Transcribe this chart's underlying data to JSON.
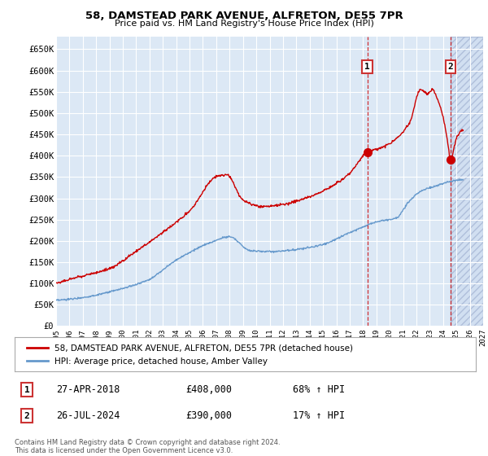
{
  "title": "58, DAMSTEAD PARK AVENUE, ALFRETON, DE55 7PR",
  "subtitle": "Price paid vs. HM Land Registry's House Price Index (HPI)",
  "ylim": [
    0,
    680000
  ],
  "yticks": [
    0,
    50000,
    100000,
    150000,
    200000,
    250000,
    300000,
    350000,
    400000,
    450000,
    500000,
    550000,
    600000,
    650000
  ],
  "ytick_labels": [
    "£0",
    "£50K",
    "£100K",
    "£150K",
    "£200K",
    "£250K",
    "£300K",
    "£350K",
    "£400K",
    "£450K",
    "£500K",
    "£550K",
    "£600K",
    "£650K"
  ],
  "xmin_year": 1995,
  "xmax_year": 2027,
  "xtick_years": [
    1995,
    1996,
    1997,
    1998,
    1999,
    2000,
    2001,
    2002,
    2003,
    2004,
    2005,
    2006,
    2007,
    2008,
    2009,
    2010,
    2011,
    2012,
    2013,
    2014,
    2015,
    2016,
    2017,
    2018,
    2019,
    2020,
    2021,
    2022,
    2023,
    2024,
    2025,
    2026,
    2027
  ],
  "hpi_color": "#6699cc",
  "price_color": "#cc0000",
  "vline1_x": 2018.32,
  "vline2_x": 2024.55,
  "marker1_x": 2018.32,
  "marker1_y": 408000,
  "marker2_x": 2024.55,
  "marker2_y": 390000,
  "annotation1_date": "27-APR-2018",
  "annotation1_price": "£408,000",
  "annotation1_hpi": "68% ↑ HPI",
  "annotation2_date": "26-JUL-2024",
  "annotation2_price": "£390,000",
  "annotation2_hpi": "17% ↑ HPI",
  "legend_label1": "58, DAMSTEAD PARK AVENUE, ALFRETON, DE55 7PR (detached house)",
  "legend_label2": "HPI: Average price, detached house, Amber Valley",
  "footer": "Contains HM Land Registry data © Crown copyright and database right 2024.\nThis data is licensed under the Open Government Licence v3.0.",
  "background_color": "#dce8f5",
  "plot_bg": "#ffffff",
  "shaded_region_start": 2024.55,
  "shaded_region_end": 2027,
  "fig_width": 6.0,
  "fig_height": 5.6
}
